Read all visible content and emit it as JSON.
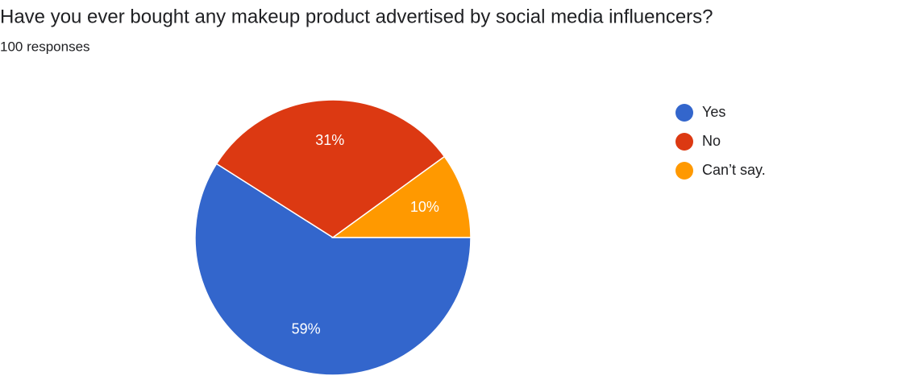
{
  "chart_data": {
    "type": "pie",
    "title": "Have you ever bought any makeup product advertised by social media influencers?",
    "subtitle": "100 responses",
    "categories": [
      "Yes",
      "No",
      "Can’t say."
    ],
    "values": [
      59,
      31,
      10
    ],
    "value_labels": [
      "59%",
      "31%",
      "10%"
    ],
    "colors": [
      "#3366cc",
      "#dc3912",
      "#ff9900"
    ],
    "legend": "right"
  }
}
